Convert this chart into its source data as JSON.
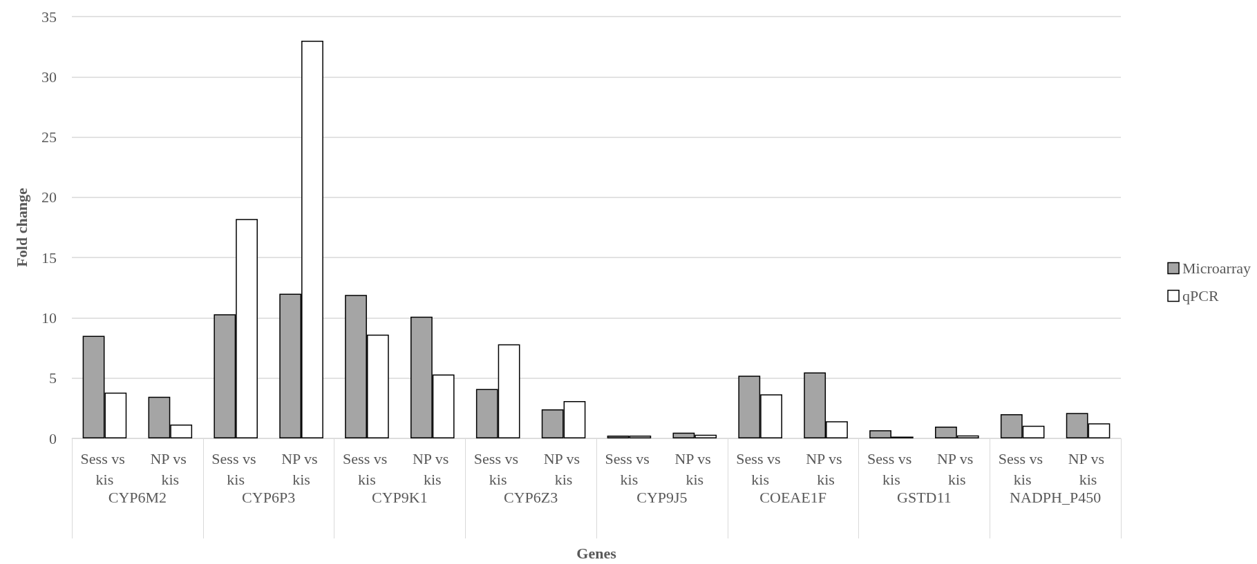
{
  "chart_data": {
    "type": "bar",
    "xlabel": "Genes",
    "ylabel": "Fold change",
    "categories": [
      "Sess vs kis",
      "NP vs kis",
      "Sess vs kis",
      "NP vs kis",
      "Sess vs kis",
      "NP vs kis",
      "Sess vs kis",
      "NP vs kis",
      "Sess vs kis",
      "NP vs kis",
      "Sess vs kis",
      "NP vs kis",
      "Sess vs kis",
      "NP vs kis",
      "Sess vs kis",
      "NP vs kis"
    ],
    "annotations": [
      "CYP6M2",
      "CYP6P3",
      "CYP9K1",
      "CYP6Z3",
      "CYP9J5",
      "COEAE1F",
      "GSTD11",
      "NADPH_P450"
    ],
    "series": [
      {
        "name": "Microarray",
        "color": "#a5a5a5",
        "values": [
          8.5,
          3.45,
          10.3,
          12.0,
          11.9,
          10.1,
          4.1,
          2.4,
          0.23,
          0.47,
          5.2,
          5.47,
          0.68,
          0.98,
          2.0,
          2.1
        ]
      },
      {
        "name": "qPCR",
        "color": "#ffffff",
        "values": [
          3.8,
          1.15,
          18.2,
          33.0,
          8.6,
          5.3,
          7.8,
          3.1,
          0.23,
          0.3,
          3.65,
          1.42,
          0.14,
          0.24,
          1.05,
          1.25
        ]
      }
    ],
    "ylim": [
      0,
      35
    ],
    "yticks": [
      0,
      5,
      10,
      15,
      20,
      25,
      30,
      35
    ],
    "grid": "y",
    "legend": "right"
  }
}
